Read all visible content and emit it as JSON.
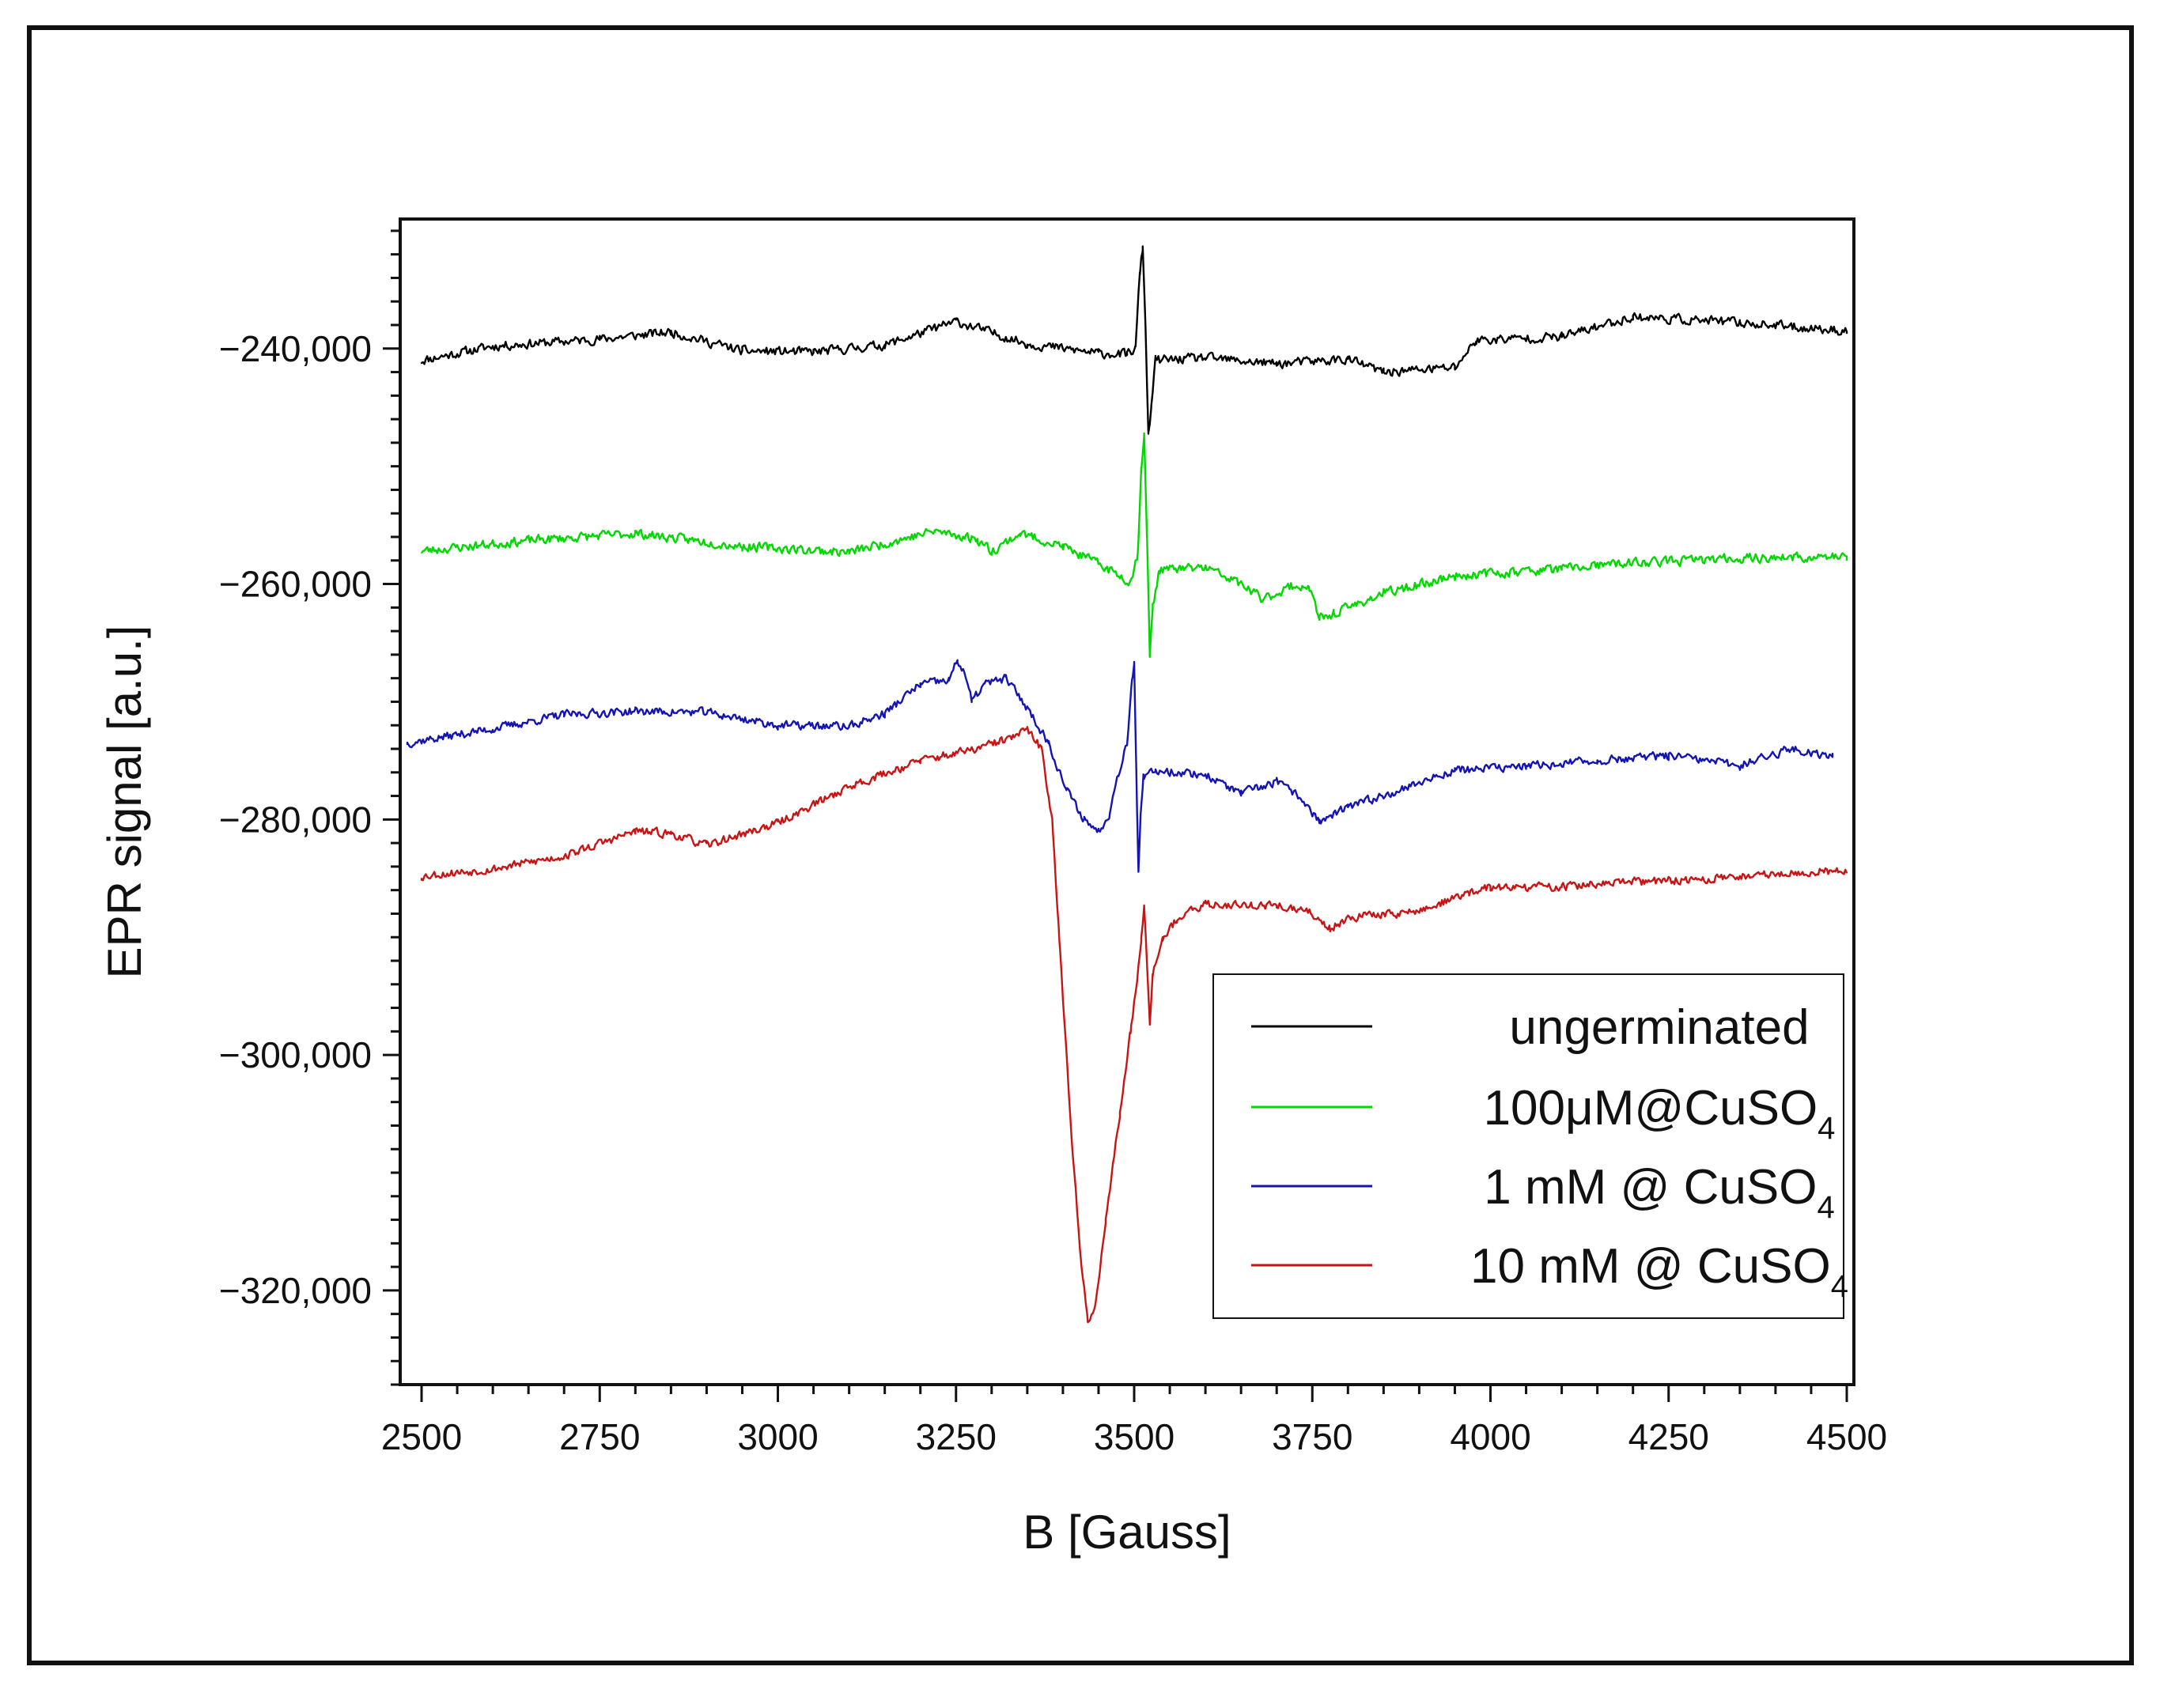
{
  "chart_data": {
    "type": "line",
    "title": "",
    "xlabel": "B [Gauss]",
    "ylabel": "EPR signal [a.u.]",
    "xlim": [
      2470,
      4510
    ],
    "ylim": [
      -328000,
      -229000
    ],
    "xticks": [
      2500,
      2750,
      3000,
      3250,
      3500,
      3750,
      4000,
      4250,
      4500
    ],
    "xtick_labels": [
      "2500",
      "2750",
      "3000",
      "3250",
      "3500",
      "3750",
      "4000",
      "4250",
      "4500"
    ],
    "yticks": [
      -240000,
      -260000,
      -280000,
      -300000,
      -320000
    ],
    "ytick_labels": [
      "−240,000",
      "−260,000",
      "−280,000",
      "−300,000",
      "−320,000"
    ],
    "legend_position": "bottom-right",
    "grid": false,
    "series": [
      {
        "name": "ungerminated",
        "label_main": "ungerminated",
        "label_sub": "",
        "color": "#000000",
        "x_range": [
          2500,
          4500
        ],
        "noise": 550,
        "seed": 11,
        "points": [
          [
            2500,
            -241000
          ],
          [
            2600,
            -239800
          ],
          [
            2750,
            -239200
          ],
          [
            2850,
            -238600
          ],
          [
            2950,
            -240200
          ],
          [
            3050,
            -240300
          ],
          [
            3150,
            -239700
          ],
          [
            3250,
            -237700
          ],
          [
            3350,
            -239600
          ],
          [
            3450,
            -240400
          ],
          [
            3490,
            -240500
          ],
          [
            3502,
            -240000
          ],
          [
            3508,
            -233500
          ],
          [
            3512,
            -231500
          ],
          [
            3516,
            -238000
          ],
          [
            3520,
            -247500
          ],
          [
            3524,
            -245000
          ],
          [
            3530,
            -241000
          ],
          [
            3600,
            -240800
          ],
          [
            3700,
            -241300
          ],
          [
            3800,
            -240900
          ],
          [
            3850,
            -242000
          ],
          [
            3950,
            -241600
          ],
          [
            3980,
            -239300
          ],
          [
            4100,
            -239000
          ],
          [
            4200,
            -237300
          ],
          [
            4350,
            -237800
          ],
          [
            4500,
            -238500
          ]
        ]
      },
      {
        "name": "100μM@CuSO4",
        "label_main": "100μM@CuSO",
        "label_sub": "4",
        "color": "#00d800",
        "x_range": [
          2500,
          4500
        ],
        "noise": 550,
        "seed": 23,
        "points": [
          [
            2500,
            -257200
          ],
          [
            2650,
            -256300
          ],
          [
            2800,
            -255700
          ],
          [
            2950,
            -256800
          ],
          [
            3100,
            -257300
          ],
          [
            3220,
            -255500
          ],
          [
            3280,
            -256200
          ],
          [
            3300,
            -257200
          ],
          [
            3340,
            -255700
          ],
          [
            3400,
            -256800
          ],
          [
            3460,
            -258600
          ],
          [
            3495,
            -259800
          ],
          [
            3505,
            -257500
          ],
          [
            3510,
            -250000
          ],
          [
            3514,
            -247500
          ],
          [
            3518,
            -256000
          ],
          [
            3522,
            -266000
          ],
          [
            3526,
            -262000
          ],
          [
            3535,
            -258800
          ],
          [
            3600,
            -258600
          ],
          [
            3650,
            -260000
          ],
          [
            3680,
            -261300
          ],
          [
            3720,
            -260200
          ],
          [
            3745,
            -260200
          ],
          [
            3760,
            -263000
          ],
          [
            3780,
            -262500
          ],
          [
            3850,
            -260800
          ],
          [
            3950,
            -259300
          ],
          [
            4100,
            -258700
          ],
          [
            4200,
            -258200
          ],
          [
            4350,
            -257800
          ],
          [
            4500,
            -257700
          ]
        ]
      },
      {
        "name": "1 mM @ CuSO4",
        "label_main": "1 mM @ CuSO",
        "label_sub": "4",
        "color": "#1414b4",
        "x_range": [
          2480,
          4480
        ],
        "noise": 500,
        "seed": 37,
        "points": [
          [
            2480,
            -273500
          ],
          [
            2600,
            -272300
          ],
          [
            2700,
            -271100
          ],
          [
            2800,
            -270800
          ],
          [
            2900,
            -270900
          ],
          [
            3000,
            -272000
          ],
          [
            3100,
            -272100
          ],
          [
            3150,
            -271000
          ],
          [
            3200,
            -268500
          ],
          [
            3240,
            -268200
          ],
          [
            3252,
            -266500
          ],
          [
            3262,
            -267500
          ],
          [
            3272,
            -270000
          ],
          [
            3290,
            -268500
          ],
          [
            3320,
            -268000
          ],
          [
            3350,
            -270500
          ],
          [
            3380,
            -273500
          ],
          [
            3405,
            -277500
          ],
          [
            3430,
            -280000
          ],
          [
            3450,
            -281000
          ],
          [
            3465,
            -279500
          ],
          [
            3478,
            -276000
          ],
          [
            3490,
            -273500
          ],
          [
            3497,
            -268000
          ],
          [
            3500,
            -266500
          ],
          [
            3503,
            -276000
          ],
          [
            3506,
            -284500
          ],
          [
            3509,
            -280000
          ],
          [
            3513,
            -276500
          ],
          [
            3530,
            -275800
          ],
          [
            3600,
            -276200
          ],
          [
            3650,
            -277800
          ],
          [
            3700,
            -276800
          ],
          [
            3735,
            -278200
          ],
          [
            3760,
            -280200
          ],
          [
            3800,
            -279000
          ],
          [
            3880,
            -277300
          ],
          [
            3950,
            -275800
          ],
          [
            4050,
            -275500
          ],
          [
            4150,
            -275000
          ],
          [
            4250,
            -274600
          ],
          [
            4350,
            -275400
          ],
          [
            4420,
            -274000
          ],
          [
            4480,
            -274600
          ]
        ]
      },
      {
        "name": "10 mM @ CuSO4",
        "label_main": "10 mM @ CuSO",
        "label_sub": "4",
        "color": "#c81414",
        "x_range": [
          2500,
          4500
        ],
        "noise": 500,
        "seed": 53,
        "points": [
          [
            2500,
            -284800
          ],
          [
            2600,
            -284200
          ],
          [
            2700,
            -283100
          ],
          [
            2800,
            -281000
          ],
          [
            2850,
            -281200
          ],
          [
            2900,
            -282200
          ],
          [
            3000,
            -280300
          ],
          [
            3100,
            -277200
          ],
          [
            3200,
            -275000
          ],
          [
            3280,
            -274000
          ],
          [
            3330,
            -273000
          ],
          [
            3350,
            -272400
          ],
          [
            3370,
            -274000
          ],
          [
            3385,
            -280000
          ],
          [
            3395,
            -290000
          ],
          [
            3410,
            -305000
          ],
          [
            3425,
            -317500
          ],
          [
            3435,
            -322500
          ],
          [
            3445,
            -321500
          ],
          [
            3460,
            -314000
          ],
          [
            3480,
            -305000
          ],
          [
            3495,
            -298000
          ],
          [
            3505,
            -293000
          ],
          [
            3510,
            -290000
          ],
          [
            3514,
            -287500
          ],
          [
            3518,
            -292000
          ],
          [
            3522,
            -297000
          ],
          [
            3526,
            -293000
          ],
          [
            3540,
            -290000
          ],
          [
            3560,
            -288500
          ],
          [
            3600,
            -287200
          ],
          [
            3700,
            -287300
          ],
          [
            3750,
            -288000
          ],
          [
            3775,
            -289300
          ],
          [
            3800,
            -288300
          ],
          [
            3900,
            -287800
          ],
          [
            3970,
            -286200
          ],
          [
            4000,
            -285800
          ],
          [
            4100,
            -285700
          ],
          [
            4200,
            -285300
          ],
          [
            4300,
            -285100
          ],
          [
            4400,
            -284600
          ],
          [
            4500,
            -284300
          ]
        ]
      }
    ]
  }
}
